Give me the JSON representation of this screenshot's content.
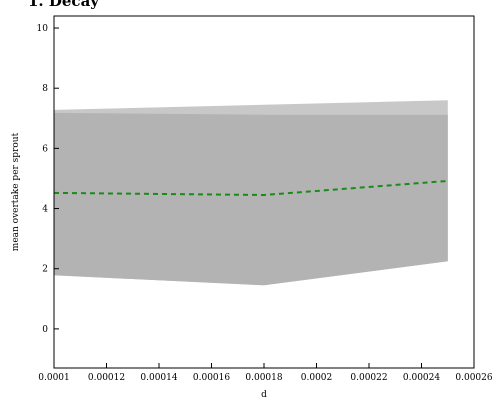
{
  "chart_data": {
    "type": "area",
    "title": "1. Decay",
    "xlabel": "d",
    "ylabel": "mean overtake per sprout",
    "xlim": [
      0.0001,
      0.00026
    ],
    "ylim": [
      -1.3,
      10.4
    ],
    "xticks": [
      "0.0001",
      "0.00012",
      "0.00014",
      "0.00016",
      "0.00018",
      "0.0002",
      "0.00022",
      "0.00024",
      "0.00026"
    ],
    "yticks": [
      "0",
      "2",
      "4",
      "6",
      "8",
      "10"
    ],
    "grid": false,
    "legend": "none",
    "x": [
      0.0001,
      0.00018,
      0.00025
    ],
    "series": [
      {
        "role": "mean",
        "values": [
          4.52,
          4.45,
          4.92
        ],
        "color": "#1a8a1a",
        "style": "dashed"
      },
      {
        "role": "outer-band",
        "lower": [
          1.78,
          1.45,
          2.25
        ],
        "upper": [
          7.28,
          7.45,
          7.6
        ],
        "color": "#c8c8c8"
      },
      {
        "role": "inner-band",
        "lower": [
          1.78,
          1.45,
          2.25
        ],
        "upper": [
          7.18,
          7.12,
          7.12
        ],
        "color": "#b3b3b3"
      }
    ]
  }
}
